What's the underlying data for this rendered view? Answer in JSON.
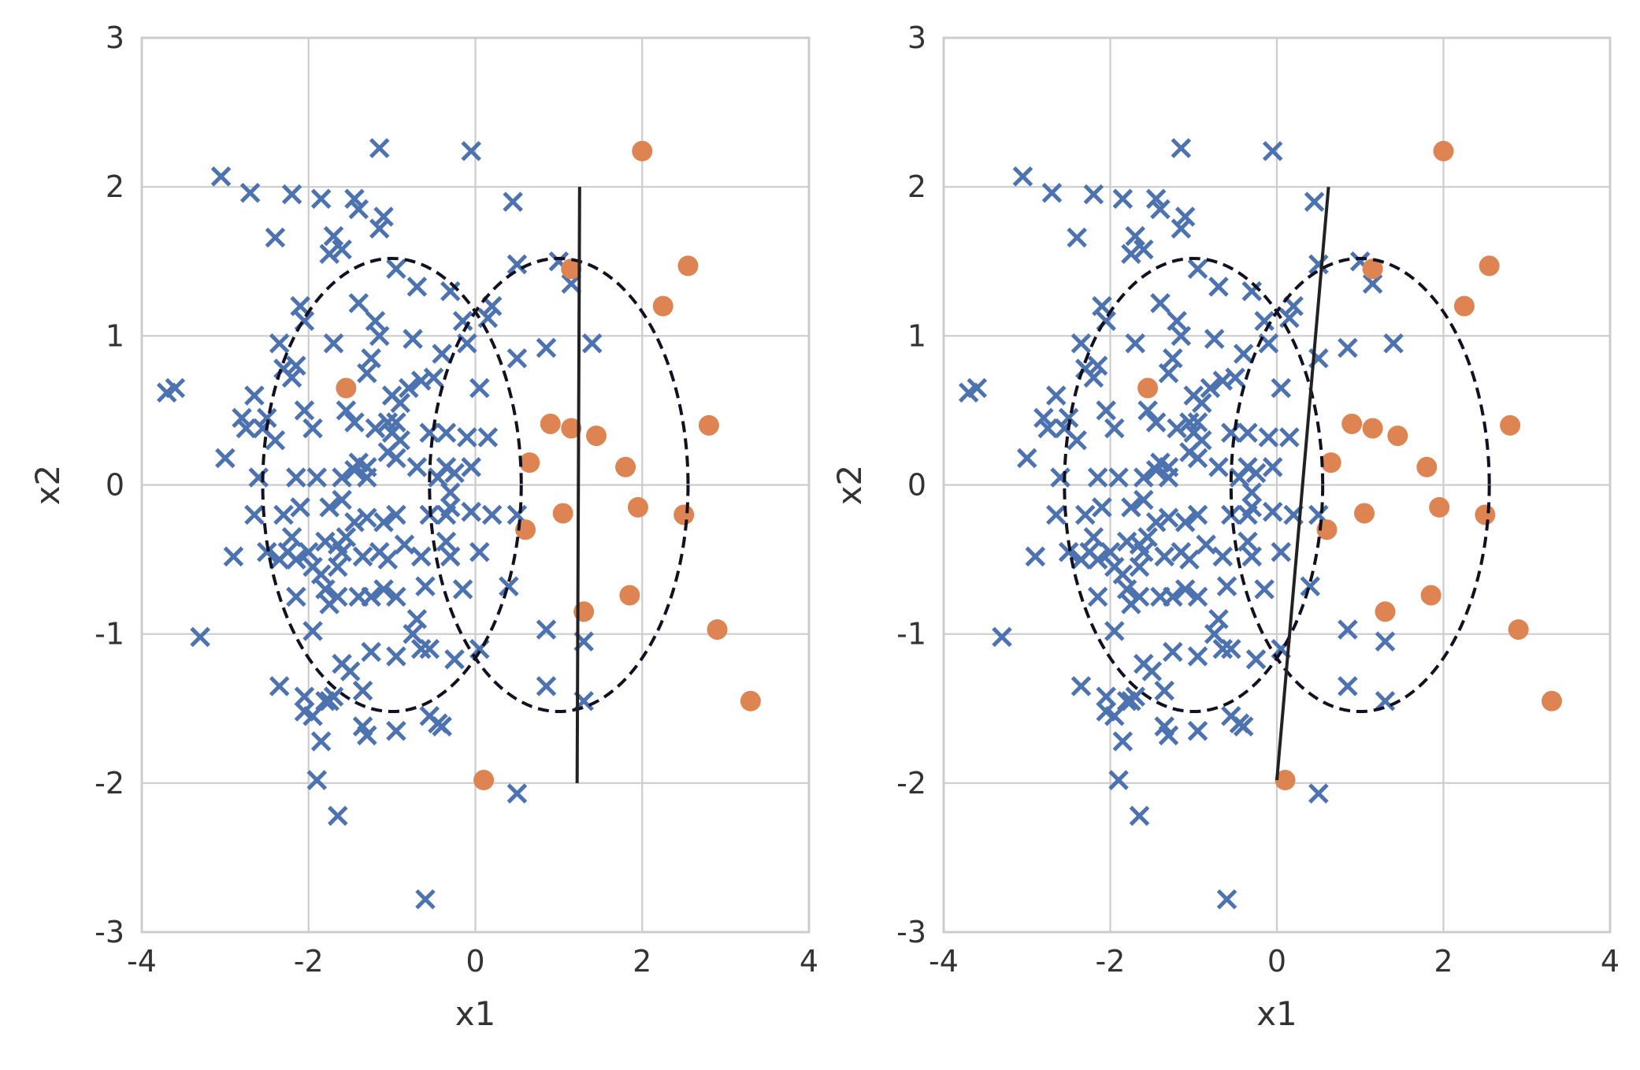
{
  "chart_data": [
    {
      "type": "scatter",
      "xlabel": "x1",
      "ylabel": "x2",
      "xlim": [
        -4,
        4
      ],
      "ylim": [
        -3,
        3
      ],
      "xticks": [
        -4,
        -2,
        0,
        2,
        4
      ],
      "yticks": [
        -3,
        -2,
        -1,
        0,
        1,
        2,
        3
      ],
      "xtick_labels": [
        "-4",
        "-2",
        "0",
        "2",
        "4"
      ],
      "ytick_labels": [
        "-3",
        "-2",
        "-1",
        "0",
        "1",
        "2",
        "3"
      ],
      "grid": true,
      "series": [
        {
          "marker": "x",
          "color": "#4c72b0",
          "points": [
            [
              -3.05,
              2.07
            ],
            [
              -2.7,
              1.96
            ],
            [
              -2.2,
              1.95
            ],
            [
              -1.85,
              1.92
            ],
            [
              -1.45,
              1.92
            ],
            [
              -1.4,
              1.85
            ],
            [
              -1.15,
              1.72
            ],
            [
              -1.1,
              1.8
            ],
            [
              -1.15,
              2.26
            ],
            [
              -0.05,
              2.24
            ],
            [
              0.45,
              1.9
            ],
            [
              -2.4,
              1.66
            ],
            [
              -1.7,
              1.67
            ],
            [
              -1.75,
              1.55
            ],
            [
              -1.6,
              1.58
            ],
            [
              -0.95,
              1.45
            ],
            [
              -0.7,
              1.33
            ],
            [
              -0.3,
              1.3
            ],
            [
              0.5,
              1.48
            ],
            [
              1.0,
              1.5
            ],
            [
              1.15,
              1.35
            ],
            [
              -2.1,
              1.2
            ],
            [
              -2.05,
              1.1
            ],
            [
              -1.4,
              1.22
            ],
            [
              -1.2,
              1.1
            ],
            [
              -1.15,
              1.0
            ],
            [
              -0.75,
              0.98
            ],
            [
              -0.4,
              0.88
            ],
            [
              -0.1,
              0.95
            ],
            [
              -0.15,
              1.1
            ],
            [
              0.2,
              1.2
            ],
            [
              0.15,
              1.12
            ],
            [
              0.5,
              0.85
            ],
            [
              0.85,
              0.92
            ],
            [
              1.4,
              0.95
            ],
            [
              -2.35,
              0.95
            ],
            [
              -2.3,
              0.78
            ],
            [
              -2.2,
              0.72
            ],
            [
              -2.15,
              0.8
            ],
            [
              -1.7,
              0.95
            ],
            [
              -1.25,
              0.85
            ],
            [
              -1.3,
              0.75
            ],
            [
              -1.0,
              0.6
            ],
            [
              -0.9,
              0.55
            ],
            [
              -0.8,
              0.65
            ],
            [
              -0.65,
              0.7
            ],
            [
              -0.5,
              0.72
            ],
            [
              0.05,
              0.65
            ],
            [
              -3.7,
              0.62
            ],
            [
              -3.6,
              0.65
            ],
            [
              -2.65,
              0.6
            ],
            [
              -2.5,
              0.45
            ],
            [
              -2.8,
              0.45
            ],
            [
              -2.75,
              0.38
            ],
            [
              -2.55,
              0.38
            ],
            [
              -2.05,
              0.5
            ],
            [
              -1.95,
              0.38
            ],
            [
              -1.55,
              0.5
            ],
            [
              -1.45,
              0.42
            ],
            [
              -1.2,
              0.38
            ],
            [
              -1.05,
              0.42
            ],
            [
              -1.0,
              0.35
            ],
            [
              -0.95,
              0.42
            ],
            [
              -0.9,
              0.3
            ],
            [
              -0.55,
              0.35
            ],
            [
              -0.35,
              0.35
            ],
            [
              -0.1,
              0.32
            ],
            [
              0.15,
              0.32
            ],
            [
              -3.0,
              0.18
            ],
            [
              -2.4,
              0.3
            ],
            [
              -2.6,
              0.05
            ],
            [
              -2.15,
              0.05
            ],
            [
              -1.9,
              0.05
            ],
            [
              -1.6,
              0.05
            ],
            [
              -1.45,
              0.1
            ],
            [
              -1.4,
              0.15
            ],
            [
              -1.3,
              0.12
            ],
            [
              -1.3,
              0.05
            ],
            [
              -1.05,
              0.22
            ],
            [
              -0.95,
              0.18
            ],
            [
              -0.7,
              0.12
            ],
            [
              -0.35,
              0.12
            ],
            [
              -0.25,
              0.08
            ],
            [
              -0.05,
              0.12
            ],
            [
              -0.45,
              0.05
            ],
            [
              -0.3,
              -0.05
            ],
            [
              -2.65,
              -0.2
            ],
            [
              -2.3,
              -0.2
            ],
            [
              -2.1,
              -0.15
            ],
            [
              -1.75,
              -0.15
            ],
            [
              -1.6,
              -0.1
            ],
            [
              -1.45,
              -0.25
            ],
            [
              -1.3,
              -0.22
            ],
            [
              -1.1,
              -0.25
            ],
            [
              -0.95,
              -0.2
            ],
            [
              -0.55,
              -0.2
            ],
            [
              -0.35,
              -0.2
            ],
            [
              -0.3,
              -0.15
            ],
            [
              -0.05,
              -0.18
            ],
            [
              0.2,
              -0.2
            ],
            [
              0.5,
              -0.2
            ],
            [
              -2.5,
              -0.45
            ],
            [
              -2.2,
              -0.35
            ],
            [
              -2.15,
              -0.5
            ],
            [
              -2.0,
              -0.45
            ],
            [
              -1.8,
              -0.38
            ],
            [
              -1.65,
              -0.4
            ],
            [
              -1.55,
              -0.35
            ],
            [
              -1.35,
              -0.48
            ],
            [
              -1.15,
              -0.45
            ],
            [
              -1.05,
              -0.5
            ],
            [
              -0.85,
              -0.4
            ],
            [
              -0.65,
              -0.48
            ],
            [
              -0.35,
              -0.38
            ],
            [
              -0.3,
              -0.48
            ],
            [
              0.05,
              -0.45
            ],
            [
              -2.9,
              -0.48
            ],
            [
              -2.35,
              -0.5
            ],
            [
              -2.25,
              -0.45
            ],
            [
              -1.95,
              -0.55
            ],
            [
              -1.65,
              -0.55
            ],
            [
              -1.6,
              -0.45
            ],
            [
              -1.85,
              -0.6
            ],
            [
              -1.8,
              -0.7
            ],
            [
              -1.65,
              -0.75
            ],
            [
              -1.4,
              -0.75
            ],
            [
              -1.25,
              -0.75
            ],
            [
              -1.1,
              -0.7
            ],
            [
              -0.95,
              -0.75
            ],
            [
              -0.6,
              -0.68
            ],
            [
              -0.15,
              -0.7
            ],
            [
              0.4,
              -0.68
            ],
            [
              -2.15,
              -0.75
            ],
            [
              -1.75,
              -0.8
            ],
            [
              -0.7,
              -0.9
            ],
            [
              -0.75,
              -1.0
            ],
            [
              -0.55,
              -1.1
            ],
            [
              -0.65,
              -1.1
            ],
            [
              -3.3,
              -1.02
            ],
            [
              -1.95,
              -0.98
            ],
            [
              -1.25,
              -1.12
            ],
            [
              -0.95,
              -1.15
            ],
            [
              -0.25,
              -1.17
            ],
            [
              0.05,
              -1.1
            ],
            [
              0.85,
              -0.97
            ],
            [
              1.3,
              -1.05
            ],
            [
              -2.35,
              -1.35
            ],
            [
              -2.05,
              -1.42
            ],
            [
              -1.75,
              -1.45
            ],
            [
              -1.6,
              -1.2
            ],
            [
              -1.5,
              -1.25
            ],
            [
              -1.35,
              -1.38
            ],
            [
              -2.05,
              -1.52
            ],
            [
              -1.95,
              -1.55
            ],
            [
              -1.8,
              -1.45
            ],
            [
              -1.7,
              -1.42
            ],
            [
              -1.35,
              -1.62
            ],
            [
              -1.3,
              -1.68
            ],
            [
              -0.95,
              -1.65
            ],
            [
              -0.55,
              -1.55
            ],
            [
              -0.45,
              -1.6
            ],
            [
              -0.4,
              -1.62
            ],
            [
              0.85,
              -1.35
            ],
            [
              1.3,
              -1.45
            ],
            [
              -1.85,
              -1.72
            ],
            [
              -1.9,
              -1.98
            ],
            [
              -1.65,
              -2.22
            ],
            [
              0.5,
              -2.07
            ],
            [
              -0.6,
              -2.78
            ]
          ]
        },
        {
          "marker": "o",
          "color": "#dd8452",
          "points": [
            [
              2.0,
              2.24
            ],
            [
              2.55,
              1.47
            ],
            [
              2.25,
              1.2
            ],
            [
              1.15,
              1.45
            ],
            [
              -1.55,
              0.65
            ],
            [
              0.9,
              0.41
            ],
            [
              1.15,
              0.38
            ],
            [
              1.45,
              0.33
            ],
            [
              2.8,
              0.4
            ],
            [
              0.65,
              0.15
            ],
            [
              1.8,
              0.12
            ],
            [
              1.05,
              -0.19
            ],
            [
              1.95,
              -0.15
            ],
            [
              2.5,
              -0.2
            ],
            [
              0.6,
              -0.3
            ],
            [
              1.3,
              -0.85
            ],
            [
              1.85,
              -0.74
            ],
            [
              2.9,
              -0.97
            ],
            [
              3.3,
              -1.45
            ],
            [
              0.1,
              -1.98
            ]
          ]
        }
      ],
      "ellipses": [
        {
          "cx": -1.0,
          "cy": 0.0,
          "rx": 1.55,
          "ry": 1.52
        },
        {
          "cx": 1.0,
          "cy": 0.0,
          "rx": 1.55,
          "ry": 1.52
        }
      ],
      "decision_line": {
        "x1": 1.25,
        "y1": 2.0,
        "x2": 1.22,
        "y2": -2.0
      }
    },
    {
      "type": "scatter",
      "xlabel": "x1",
      "ylabel": "x2",
      "xlim": [
        -4,
        4
      ],
      "ylim": [
        -3,
        3
      ],
      "xticks": [
        -4,
        -2,
        0,
        2,
        4
      ],
      "yticks": [
        -3,
        -2,
        -1,
        0,
        1,
        2,
        3
      ],
      "xtick_labels": [
        "-4",
        "-2",
        "0",
        "2",
        "4"
      ],
      "ytick_labels": [
        "-3",
        "-2",
        "-1",
        "0",
        "1",
        "2",
        "3"
      ],
      "grid": true,
      "series": [
        {
          "marker": "x",
          "color": "#4c72b0",
          "points": "same_as_first"
        },
        {
          "marker": "o",
          "color": "#dd8452",
          "points": "same_as_first"
        }
      ],
      "ellipses": [
        {
          "cx": -1.0,
          "cy": 0.0,
          "rx": 1.55,
          "ry": 1.52
        },
        {
          "cx": 1.0,
          "cy": 0.0,
          "rx": 1.55,
          "ry": 1.52
        }
      ],
      "decision_line": {
        "x1": 0.62,
        "y1": 2.0,
        "x2": 0.0,
        "y2": -1.98
      }
    }
  ]
}
